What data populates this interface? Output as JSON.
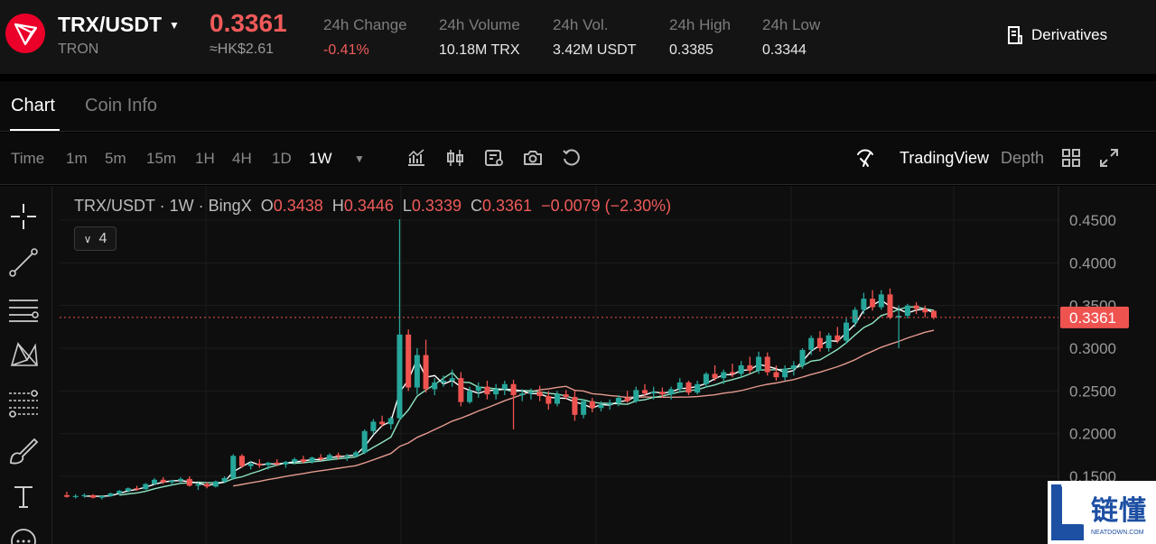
{
  "ticker": {
    "pair": "TRX/USDT",
    "network": "TRON",
    "price": "0.3361",
    "fiat_price": "≈HK$2.61",
    "stats": [
      {
        "label": "24h Change",
        "value": "-0.41%",
        "negative": true
      },
      {
        "label": "24h Volume",
        "value": "10.18M TRX",
        "negative": false
      },
      {
        "label": "24h Vol.",
        "value": "3.42M USDT",
        "negative": false
      },
      {
        "label": "24h High",
        "value": "0.3385",
        "negative": false
      },
      {
        "label": "24h Low",
        "value": "0.3344",
        "negative": false
      }
    ],
    "derivatives_label": "Derivatives"
  },
  "tabs": [
    {
      "label": "Chart",
      "active": true
    },
    {
      "label": "Coin Info",
      "active": false
    }
  ],
  "toolbar": {
    "intervals": [
      "Time",
      "1m",
      "5m",
      "15m",
      "1H",
      "4H",
      "1D",
      "1W"
    ],
    "active_interval": "1W",
    "tradingview_label": "TradingView",
    "depth_label": "Depth"
  },
  "legend": {
    "symbol": "TRX/USDT · 1W · BingX",
    "o_key": "O",
    "o": "0.3438",
    "h_key": "H",
    "h": "0.3446",
    "l_key": "L",
    "l": "0.3339",
    "c_key": "C",
    "c": "0.3361",
    "change": "−0.0079 (−2.30%)",
    "indicator_count": "4"
  },
  "colors": {
    "up": "#26a69a",
    "down": "#ef5350",
    "ma_fast": "#ffffff",
    "ma_mid": "#8ee6c2",
    "ma_slow": "#e59a8f",
    "price_line": "#ef5350"
  },
  "chart_data": {
    "type": "candlestick",
    "y_ticks": [
      "0.4500",
      "0.4000",
      "0.3500",
      "0.3000",
      "0.2500",
      "0.2000",
      "0.1500"
    ],
    "ylim": [
      0.12,
      0.48
    ],
    "last_price_label": "0.3361",
    "last_price": 0.3361,
    "candles": [
      [
        0.128,
        0.132,
        0.125,
        0.126
      ],
      [
        0.126,
        0.129,
        0.124,
        0.127
      ],
      [
        0.127,
        0.13,
        0.125,
        0.128
      ],
      [
        0.128,
        0.129,
        0.124,
        0.125
      ],
      [
        0.125,
        0.128,
        0.123,
        0.127
      ],
      [
        0.127,
        0.131,
        0.126,
        0.13
      ],
      [
        0.13,
        0.134,
        0.128,
        0.133
      ],
      [
        0.133,
        0.137,
        0.131,
        0.136
      ],
      [
        0.136,
        0.139,
        0.133,
        0.135
      ],
      [
        0.135,
        0.142,
        0.134,
        0.141
      ],
      [
        0.141,
        0.148,
        0.14,
        0.146
      ],
      [
        0.146,
        0.149,
        0.141,
        0.143
      ],
      [
        0.143,
        0.146,
        0.14,
        0.145
      ],
      [
        0.145,
        0.149,
        0.142,
        0.147
      ],
      [
        0.147,
        0.15,
        0.138,
        0.139
      ],
      [
        0.139,
        0.143,
        0.134,
        0.141
      ],
      [
        0.141,
        0.143,
        0.136,
        0.138
      ],
      [
        0.138,
        0.145,
        0.137,
        0.144
      ],
      [
        0.144,
        0.15,
        0.142,
        0.148
      ],
      [
        0.148,
        0.176,
        0.146,
        0.174
      ],
      [
        0.174,
        0.176,
        0.16,
        0.162
      ],
      [
        0.162,
        0.168,
        0.158,
        0.165
      ],
      [
        0.165,
        0.17,
        0.16,
        0.163
      ],
      [
        0.163,
        0.167,
        0.158,
        0.166
      ],
      [
        0.166,
        0.17,
        0.162,
        0.164
      ],
      [
        0.164,
        0.168,
        0.16,
        0.167
      ],
      [
        0.167,
        0.172,
        0.164,
        0.17
      ],
      [
        0.17,
        0.174,
        0.165,
        0.167
      ],
      [
        0.167,
        0.173,
        0.165,
        0.172
      ],
      [
        0.172,
        0.176,
        0.168,
        0.17
      ],
      [
        0.17,
        0.177,
        0.168,
        0.175
      ],
      [
        0.175,
        0.178,
        0.17,
        0.173
      ],
      [
        0.173,
        0.176,
        0.168,
        0.174
      ],
      [
        0.174,
        0.18,
        0.172,
        0.178
      ],
      [
        0.178,
        0.205,
        0.176,
        0.203
      ],
      [
        0.203,
        0.217,
        0.199,
        0.214
      ],
      [
        0.214,
        0.221,
        0.208,
        0.211
      ],
      [
        0.211,
        0.22,
        0.205,
        0.218
      ],
      [
        0.218,
        0.451,
        0.216,
        0.316
      ],
      [
        0.316,
        0.322,
        0.25,
        0.254
      ],
      [
        0.254,
        0.3,
        0.246,
        0.292
      ],
      [
        0.292,
        0.31,
        0.248,
        0.252
      ],
      [
        0.252,
        0.265,
        0.245,
        0.26
      ],
      [
        0.26,
        0.268,
        0.255,
        0.262
      ],
      [
        0.262,
        0.275,
        0.255,
        0.265
      ],
      [
        0.265,
        0.272,
        0.232,
        0.237
      ],
      [
        0.237,
        0.255,
        0.235,
        0.25
      ],
      [
        0.25,
        0.26,
        0.242,
        0.255
      ],
      [
        0.255,
        0.262,
        0.24,
        0.246
      ],
      [
        0.246,
        0.258,
        0.24,
        0.252
      ],
      [
        0.252,
        0.262,
        0.245,
        0.258
      ],
      [
        0.258,
        0.263,
        0.205,
        0.245
      ],
      [
        0.245,
        0.252,
        0.238,
        0.247
      ],
      [
        0.247,
        0.253,
        0.24,
        0.249
      ],
      [
        0.249,
        0.256,
        0.238,
        0.244
      ],
      [
        0.244,
        0.25,
        0.228,
        0.235
      ],
      [
        0.235,
        0.25,
        0.232,
        0.246
      ],
      [
        0.246,
        0.251,
        0.24,
        0.243
      ],
      [
        0.243,
        0.25,
        0.215,
        0.222
      ],
      [
        0.222,
        0.24,
        0.218,
        0.238
      ],
      [
        0.238,
        0.242,
        0.225,
        0.23
      ],
      [
        0.23,
        0.238,
        0.226,
        0.234
      ],
      [
        0.234,
        0.24,
        0.228,
        0.236
      ],
      [
        0.236,
        0.245,
        0.232,
        0.242
      ],
      [
        0.242,
        0.25,
        0.236,
        0.238
      ],
      [
        0.238,
        0.255,
        0.236,
        0.251
      ],
      [
        0.251,
        0.258,
        0.244,
        0.247
      ],
      [
        0.247,
        0.255,
        0.24,
        0.249
      ],
      [
        0.249,
        0.254,
        0.242,
        0.246
      ],
      [
        0.246,
        0.255,
        0.24,
        0.252
      ],
      [
        0.252,
        0.265,
        0.248,
        0.26
      ],
      [
        0.26,
        0.262,
        0.245,
        0.248
      ],
      [
        0.248,
        0.262,
        0.246,
        0.258
      ],
      [
        0.258,
        0.272,
        0.254,
        0.27
      ],
      [
        0.27,
        0.28,
        0.262,
        0.265
      ],
      [
        0.265,
        0.275,
        0.258,
        0.272
      ],
      [
        0.272,
        0.282,
        0.266,
        0.27
      ],
      [
        0.27,
        0.285,
        0.265,
        0.28
      ],
      [
        0.28,
        0.29,
        0.27,
        0.274
      ],
      [
        0.274,
        0.296,
        0.27,
        0.29
      ],
      [
        0.29,
        0.295,
        0.268,
        0.272
      ],
      [
        0.272,
        0.28,
        0.262,
        0.266
      ],
      [
        0.266,
        0.28,
        0.262,
        0.276
      ],
      [
        0.276,
        0.285,
        0.268,
        0.28
      ],
      [
        0.28,
        0.3,
        0.276,
        0.298
      ],
      [
        0.298,
        0.315,
        0.292,
        0.312
      ],
      [
        0.312,
        0.32,
        0.296,
        0.3
      ],
      [
        0.3,
        0.318,
        0.296,
        0.315
      ],
      [
        0.315,
        0.325,
        0.306,
        0.309
      ],
      [
        0.309,
        0.335,
        0.305,
        0.33
      ],
      [
        0.33,
        0.348,
        0.325,
        0.345
      ],
      [
        0.345,
        0.365,
        0.34,
        0.358
      ],
      [
        0.358,
        0.368,
        0.344,
        0.348
      ],
      [
        0.348,
        0.368,
        0.345,
        0.363
      ],
      [
        0.363,
        0.37,
        0.334,
        0.336
      ],
      [
        0.336,
        0.35,
        0.3,
        0.338
      ],
      [
        0.338,
        0.352,
        0.335,
        0.35
      ],
      [
        0.35,
        0.354,
        0.34,
        0.346
      ],
      [
        0.346,
        0.35,
        0.336,
        0.342
      ],
      [
        0.3438,
        0.3446,
        0.3339,
        0.3361
      ]
    ]
  }
}
